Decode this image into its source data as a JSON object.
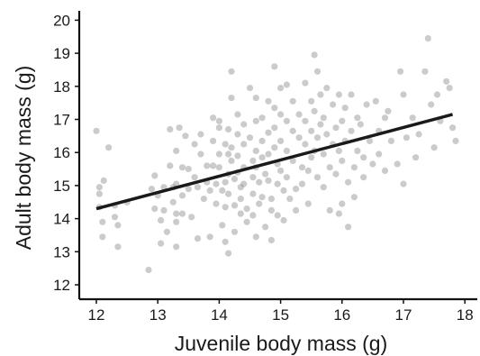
{
  "chart_data": {
    "type": "scatter",
    "xlabel": "Juvenile body mass (g)",
    "ylabel": "Adult body mass (g)",
    "xlim": [
      11.75,
      18.1
    ],
    "ylim": [
      11.7,
      20.3
    ],
    "xticks": [
      "12",
      "13",
      "14",
      "15",
      "16",
      "17",
      "18"
    ],
    "yticks": [
      "12",
      "13",
      "14",
      "15",
      "16",
      "17",
      "18",
      "19",
      "20"
    ],
    "grid": false,
    "legend": "none",
    "point_color": "#8c8c8c",
    "point_opacity": 0.45,
    "fit_line": {
      "x": [
        12.0,
        17.8
      ],
      "y": [
        14.3,
        17.15
      ],
      "color": "#1a1a1a",
      "band_color": "#c8c8c8"
    },
    "points": [
      [
        12.0,
        16.65
      ],
      [
        12.05,
        14.95
      ],
      [
        12.05,
        14.75
      ],
      [
        12.05,
        14.35
      ],
      [
        12.1,
        13.9
      ],
      [
        12.1,
        13.45
      ],
      [
        12.12,
        15.15
      ],
      [
        12.2,
        16.15
      ],
      [
        12.3,
        14.4
      ],
      [
        12.3,
        14.05
      ],
      [
        12.35,
        13.8
      ],
      [
        12.35,
        13.15
      ],
      [
        12.5,
        14.5
      ],
      [
        12.85,
        12.45
      ],
      [
        12.9,
        14.9
      ],
      [
        12.95,
        14.3
      ],
      [
        12.95,
        15.3
      ],
      [
        13.0,
        14.7
      ],
      [
        13.05,
        13.95
      ],
      [
        13.05,
        13.25
      ],
      [
        13.1,
        14.95
      ],
      [
        13.1,
        14.25
      ],
      [
        13.15,
        13.6
      ],
      [
        13.2,
        16.7
      ],
      [
        13.2,
        15.6
      ],
      [
        13.25,
        14.95
      ],
      [
        13.25,
        14.5
      ],
      [
        13.3,
        16.05
      ],
      [
        13.3,
        15.05
      ],
      [
        13.3,
        14.15
      ],
      [
        13.3,
        13.9
      ],
      [
        13.3,
        13.15
      ],
      [
        13.35,
        16.75
      ],
      [
        13.4,
        15.55
      ],
      [
        13.4,
        14.7
      ],
      [
        13.4,
        14.15
      ],
      [
        13.45,
        16.5
      ],
      [
        13.5,
        15.5
      ],
      [
        13.5,
        14.9
      ],
      [
        13.55,
        14.05
      ],
      [
        13.6,
        16.25
      ],
      [
        13.6,
        15.25
      ],
      [
        13.65,
        14.95
      ],
      [
        13.65,
        13.4
      ],
      [
        13.7,
        16.55
      ],
      [
        13.7,
        15.95
      ],
      [
        13.75,
        14.6
      ],
      [
        13.8,
        15.6
      ],
      [
        13.8,
        15.1
      ],
      [
        13.85,
        14.85
      ],
      [
        13.85,
        13.45
      ],
      [
        13.9,
        17.05
      ],
      [
        13.9,
        16.35
      ],
      [
        13.9,
        15.6
      ],
      [
        13.95,
        15.05
      ],
      [
        13.95,
        14.45
      ],
      [
        14.0,
        16.95
      ],
      [
        14.0,
        16.75
      ],
      [
        14.0,
        15.95
      ],
      [
        14.0,
        15.55
      ],
      [
        14.05,
        14.85
      ],
      [
        14.05,
        13.8
      ],
      [
        14.1,
        16.25
      ],
      [
        14.1,
        15.1
      ],
      [
        14.1,
        14.35
      ],
      [
        14.1,
        13.3
      ],
      [
        14.15,
        16.7
      ],
      [
        14.15,
        15.95
      ],
      [
        14.15,
        15.35
      ],
      [
        14.15,
        14.75
      ],
      [
        14.15,
        12.95
      ],
      [
        14.2,
        18.45
      ],
      [
        14.2,
        17.65
      ],
      [
        14.2,
        16.15
      ],
      [
        14.2,
        15.75
      ],
      [
        14.25,
        15.2
      ],
      [
        14.25,
        14.4
      ],
      [
        14.25,
        13.6
      ],
      [
        14.3,
        17.15
      ],
      [
        14.3,
        16.55
      ],
      [
        14.3,
        15.9
      ],
      [
        14.3,
        15.4
      ],
      [
        14.35,
        14.95
      ],
      [
        14.35,
        14.6
      ],
      [
        14.35,
        14.15
      ],
      [
        14.4,
        16.85
      ],
      [
        14.4,
        16.25
      ],
      [
        14.4,
        15.55
      ],
      [
        14.4,
        15.05
      ],
      [
        14.45,
        14.3
      ],
      [
        14.45,
        13.9
      ],
      [
        14.5,
        17.95
      ],
      [
        14.5,
        16.45
      ],
      [
        14.55,
        15.75
      ],
      [
        14.55,
        15.25
      ],
      [
        14.55,
        14.75
      ],
      [
        14.55,
        14.1
      ],
      [
        14.6,
        17.65
      ],
      [
        14.6,
        16.95
      ],
      [
        14.6,
        16.05
      ],
      [
        14.6,
        15.55
      ],
      [
        14.6,
        13.45
      ],
      [
        14.65,
        15.1
      ],
      [
        14.65,
        14.45
      ],
      [
        14.7,
        17.05
      ],
      [
        14.7,
        16.35
      ],
      [
        14.7,
        15.85
      ],
      [
        14.7,
        14.65
      ],
      [
        14.75,
        15.35
      ],
      [
        14.75,
        13.75
      ],
      [
        14.8,
        17.55
      ],
      [
        14.8,
        16.6
      ],
      [
        14.8,
        15.95
      ],
      [
        14.8,
        15.15
      ],
      [
        14.85,
        14.6
      ],
      [
        14.85,
        14.25
      ],
      [
        14.85,
        13.35
      ],
      [
        14.9,
        18.6
      ],
      [
        14.9,
        17.35
      ],
      [
        14.9,
        16.75
      ],
      [
        14.9,
        16.15
      ],
      [
        14.95,
        15.65
      ],
      [
        14.95,
        15.05
      ],
      [
        14.95,
        14.1
      ],
      [
        15.0,
        17.95
      ],
      [
        15.0,
        17.15
      ],
      [
        15.0,
        16.35
      ],
      [
        15.0,
        15.45
      ],
      [
        15.05,
        14.85
      ],
      [
        15.05,
        13.95
      ],
      [
        15.1,
        18.05
      ],
      [
        15.1,
        16.95
      ],
      [
        15.1,
        16.05
      ],
      [
        15.1,
        15.25
      ],
      [
        15.15,
        14.6
      ],
      [
        15.2,
        17.55
      ],
      [
        15.2,
        16.65
      ],
      [
        15.2,
        15.75
      ],
      [
        15.25,
        14.9
      ],
      [
        15.25,
        14.25
      ],
      [
        15.3,
        17.15
      ],
      [
        15.3,
        16.45
      ],
      [
        15.35,
        15.55
      ],
      [
        15.35,
        15.05
      ],
      [
        15.4,
        18.1
      ],
      [
        15.4,
        16.95
      ],
      [
        15.4,
        16.25
      ],
      [
        15.45,
        15.45
      ],
      [
        15.45,
        14.45
      ],
      [
        15.5,
        17.55
      ],
      [
        15.5,
        16.65
      ],
      [
        15.5,
        15.85
      ],
      [
        15.55,
        18.95
      ],
      [
        15.55,
        17.25
      ],
      [
        15.55,
        16.05
      ],
      [
        15.6,
        18.45
      ],
      [
        15.6,
        16.45
      ],
      [
        15.6,
        15.25
      ],
      [
        15.65,
        17.75
      ],
      [
        15.65,
        16.85
      ],
      [
        15.7,
        17.05
      ],
      [
        15.7,
        15.95
      ],
      [
        15.7,
        14.95
      ],
      [
        15.75,
        17.95
      ],
      [
        15.75,
        16.55
      ],
      [
        15.8,
        15.55
      ],
      [
        15.8,
        14.25
      ],
      [
        15.85,
        17.45
      ],
      [
        15.85,
        16.25
      ],
      [
        15.9,
        16.75
      ],
      [
        15.9,
        15.35
      ],
      [
        15.95,
        17.75
      ],
      [
        15.95,
        16.05
      ],
      [
        15.95,
        14.15
      ],
      [
        16.0,
        16.95
      ],
      [
        16.0,
        15.75
      ],
      [
        16.0,
        14.45
      ],
      [
        16.05,
        17.35
      ],
      [
        16.05,
        16.35
      ],
      [
        16.1,
        15.1
      ],
      [
        16.1,
        13.75
      ],
      [
        16.15,
        17.75
      ],
      [
        16.15,
        16.65
      ],
      [
        16.2,
        15.55
      ],
      [
        16.2,
        14.65
      ],
      [
        16.25,
        17.05
      ],
      [
        16.25,
        16.05
      ],
      [
        16.3,
        16.85
      ],
      [
        16.35,
        15.85
      ],
      [
        16.35,
        15.25
      ],
      [
        16.4,
        17.45
      ],
      [
        16.45,
        16.35
      ],
      [
        16.5,
        15.65
      ],
      [
        16.55,
        17.55
      ],
      [
        16.6,
        16.65
      ],
      [
        16.6,
        15.95
      ],
      [
        16.7,
        17.05
      ],
      [
        16.7,
        15.45
      ],
      [
        16.75,
        17.25
      ],
      [
        16.8,
        16.35
      ],
      [
        16.9,
        15.65
      ],
      [
        16.95,
        18.45
      ],
      [
        17.0,
        17.75
      ],
      [
        17.0,
        15.05
      ],
      [
        17.05,
        16.45
      ],
      [
        17.15,
        17.05
      ],
      [
        17.2,
        15.85
      ],
      [
        17.25,
        16.55
      ],
      [
        17.35,
        18.45
      ],
      [
        17.4,
        19.45
      ],
      [
        17.45,
        17.45
      ],
      [
        17.5,
        16.15
      ],
      [
        17.55,
        17.75
      ],
      [
        17.6,
        16.95
      ],
      [
        17.7,
        18.15
      ],
      [
        17.75,
        17.95
      ],
      [
        17.8,
        16.75
      ],
      [
        17.85,
        16.35
      ]
    ]
  }
}
